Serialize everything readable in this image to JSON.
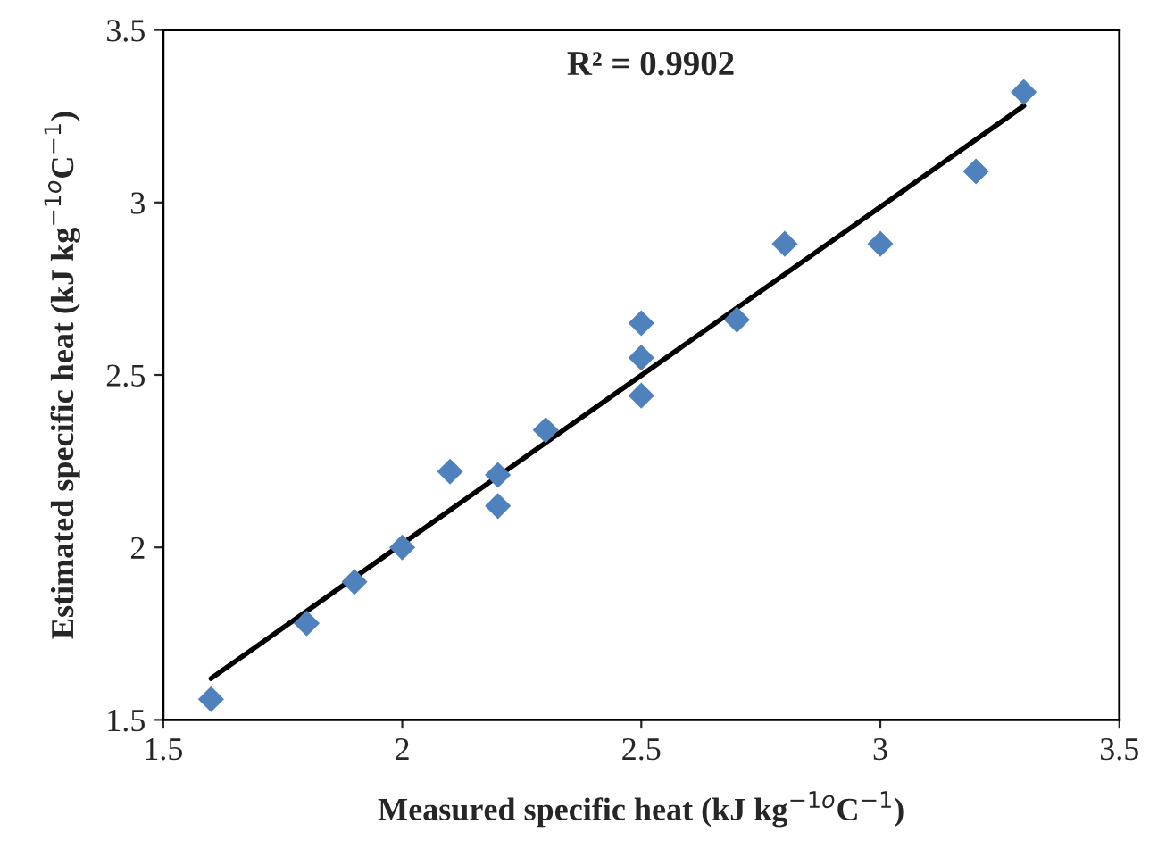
{
  "chart_data": {
    "type": "scatter",
    "xlabel": "Measured specific heat (kJ kg$^{−1o}$C$^{−1}$)",
    "ylabel": "Estimated specific heat (kJ kg$^{−1o}$C$^{−1}$)",
    "annotations": [
      "R² = 0.9902"
    ],
    "xlim": [
      1.5,
      3.5
    ],
    "xticks": [
      1.5,
      2,
      2.5,
      3,
      3.5
    ],
    "ylim": [
      1.5,
      3.5
    ],
    "yticks": [
      1.5,
      2,
      2.5,
      3,
      3.5
    ],
    "grid": false,
    "legend": false,
    "marker": "diamond",
    "series": [
      {
        "color": "#4f81bd",
        "x": [
          1.6,
          1.8,
          1.9,
          2.0,
          2.1,
          2.2,
          2.2,
          2.3,
          2.5,
          2.5,
          2.5,
          2.7,
          2.8,
          3.0,
          3.2,
          3.3
        ],
        "values": [
          1.56,
          1.78,
          1.9,
          2.0,
          2.22,
          2.21,
          2.12,
          2.34,
          2.65,
          2.55,
          2.44,
          2.66,
          2.88,
          2.88,
          3.09,
          3.32
        ]
      },
      {
        "type": "line",
        "color": "#000000",
        "marker": "none",
        "line_style": "solid",
        "x": [
          1.6,
          3.3
        ],
        "values": [
          1.62,
          3.28
        ]
      }
    ]
  }
}
